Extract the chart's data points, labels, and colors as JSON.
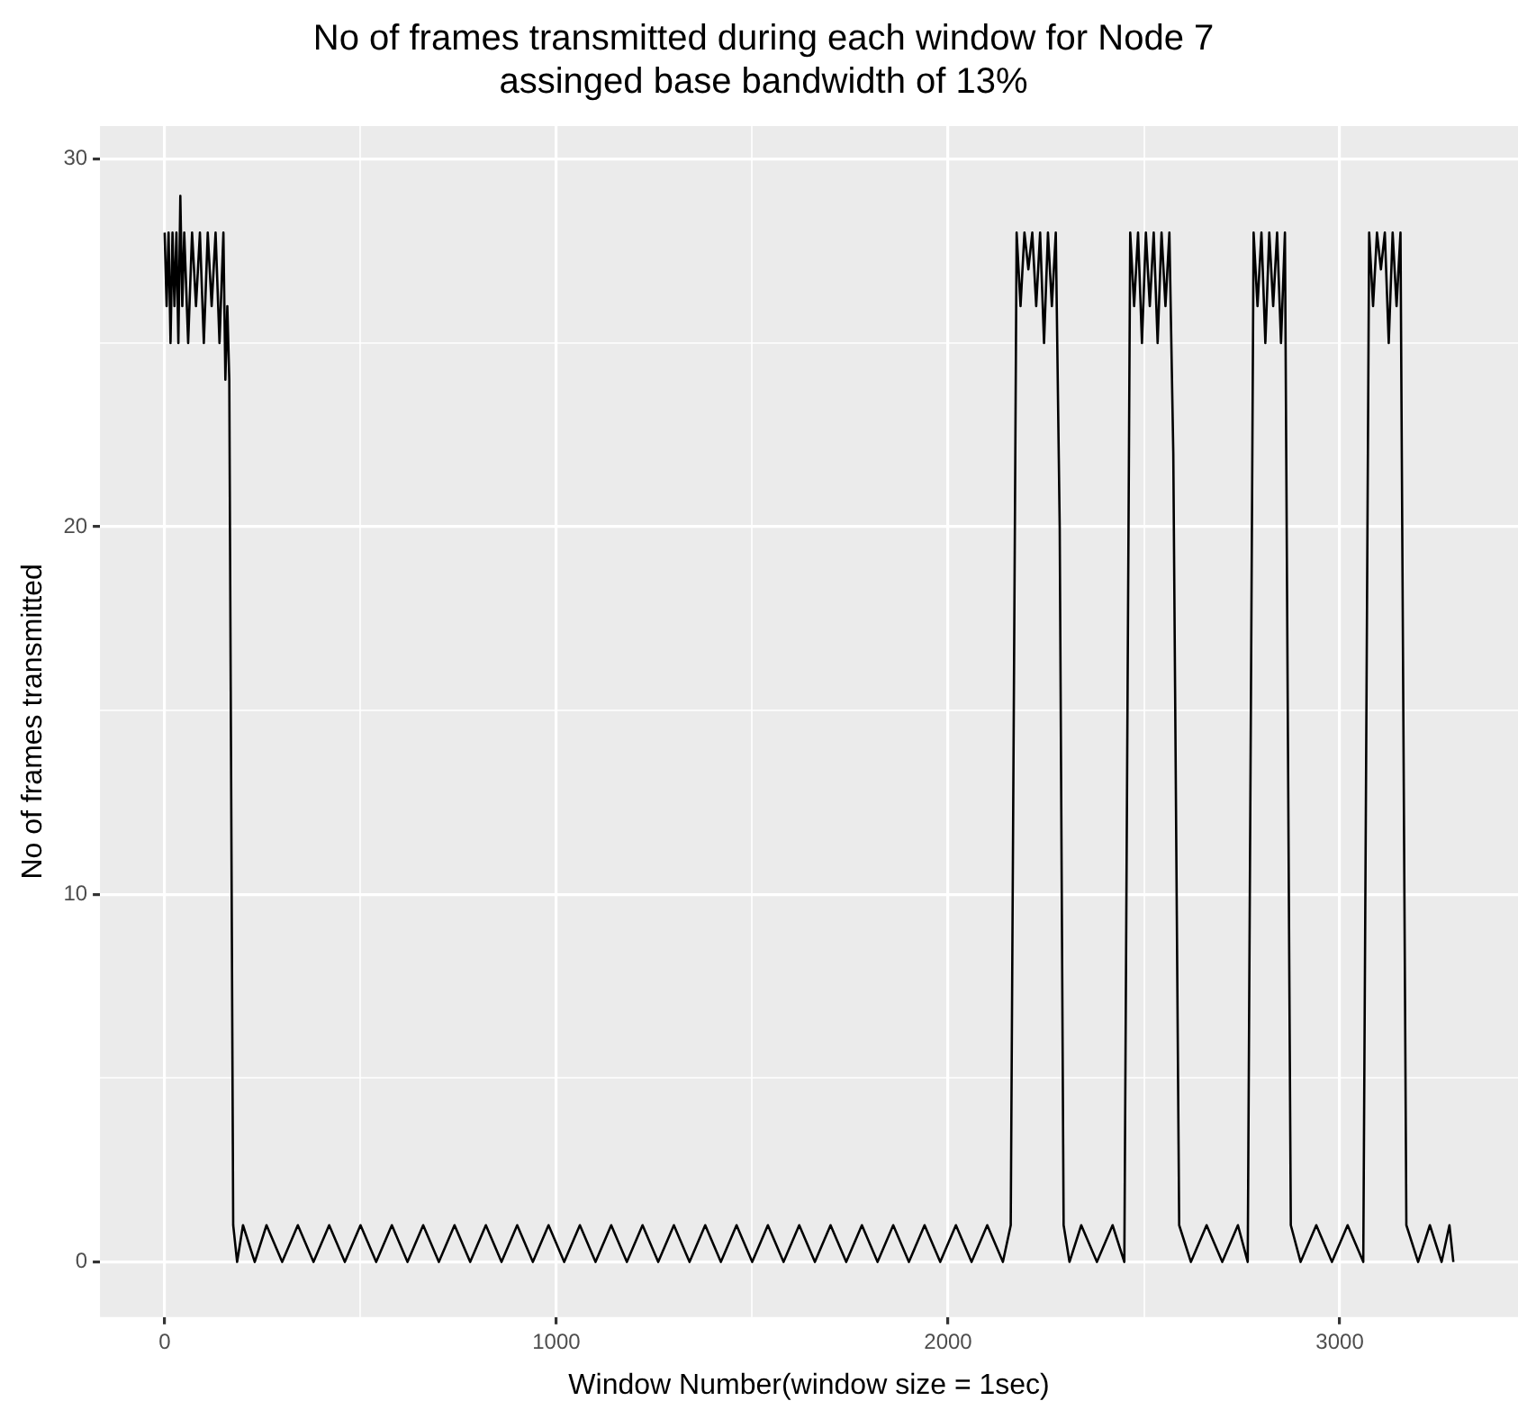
{
  "chart_data": {
    "type": "line",
    "title": "No of frames transmitted during each window for Node 7\nassinged base bandwidth of 13%",
    "xlabel": "Window Number(window size = 1sec)",
    "ylabel": "No of frames transmitted",
    "xlim": [
      -165,
      3455
    ],
    "ylim": [
      -1.5,
      30.9
    ],
    "xticks": [
      0,
      {
        "value": 500,
        "label": null
      },
      1000,
      {
        "value": 1500,
        "label": null
      },
      2000,
      {
        "value": 2500,
        "label": null
      },
      3000
    ],
    "yticks": [
      0,
      {
        "value": 5,
        "label": null
      },
      10,
      {
        "value": 15,
        "label": null
      },
      20,
      {
        "value": 25,
        "label": null
      },
      30
    ],
    "grid": true,
    "legend": false,
    "marker": "none",
    "line_style": "solid",
    "series": [
      {
        "color": "#000000",
        "x": [
          0,
          5,
          10,
          15,
          20,
          25,
          30,
          35,
          40,
          45,
          50,
          60,
          70,
          80,
          90,
          100,
          110,
          120,
          130,
          140,
          150,
          155,
          160,
          165,
          175,
          185,
          200,
          230,
          260,
          300,
          340,
          380,
          420,
          460,
          500,
          540,
          580,
          620,
          660,
          700,
          740,
          780,
          820,
          860,
          900,
          940,
          980,
          1020,
          1060,
          1100,
          1140,
          1180,
          1220,
          1260,
          1300,
          1340,
          1380,
          1420,
          1460,
          1500,
          1540,
          1580,
          1620,
          1660,
          1700,
          1740,
          1780,
          1820,
          1860,
          1900,
          1940,
          1980,
          2020,
          2060,
          2100,
          2140,
          2160,
          2175,
          2185,
          2195,
          2205,
          2215,
          2225,
          2235,
          2245,
          2255,
          2265,
          2275,
          2285,
          2295,
          2310,
          2340,
          2380,
          2420,
          2450,
          2465,
          2475,
          2485,
          2495,
          2505,
          2515,
          2525,
          2535,
          2545,
          2555,
          2565,
          2575,
          2590,
          2620,
          2660,
          2700,
          2740,
          2765,
          2780,
          2790,
          2800,
          2810,
          2820,
          2830,
          2840,
          2850,
          2860,
          2875,
          2900,
          2940,
          2980,
          3020,
          3060,
          3075,
          3085,
          3095,
          3105,
          3115,
          3125,
          3135,
          3145,
          3155,
          3170,
          3200,
          3230,
          3260,
          3280,
          3290
        ],
        "values": [
          28,
          26,
          28,
          25,
          28,
          26,
          28,
          25,
          29,
          26,
          28,
          25,
          28,
          26,
          28,
          25,
          28,
          26,
          28,
          25,
          28,
          24,
          26,
          24,
          1,
          0,
          1,
          0,
          1,
          0,
          1,
          0,
          1,
          0,
          1,
          0,
          1,
          0,
          1,
          0,
          1,
          0,
          1,
          0,
          1,
          0,
          1,
          0,
          1,
          0,
          1,
          0,
          1,
          0,
          1,
          0,
          1,
          0,
          1,
          0,
          1,
          0,
          1,
          0,
          1,
          0,
          1,
          0,
          1,
          0,
          1,
          0,
          1,
          0,
          1,
          0,
          1,
          28,
          26,
          28,
          27,
          28,
          26,
          28,
          25,
          28,
          26,
          28,
          20,
          1,
          0,
          1,
          0,
          1,
          0,
          28,
          26,
          28,
          25,
          28,
          26,
          28,
          25,
          28,
          26,
          28,
          22,
          1,
          0,
          1,
          0,
          1,
          0,
          28,
          26,
          28,
          25,
          28,
          26,
          28,
          25,
          28,
          1,
          0,
          1,
          0,
          1,
          0,
          28,
          26,
          28,
          27,
          28,
          25,
          28,
          26,
          28,
          1,
          0,
          1,
          0,
          1,
          0
        ]
      }
    ]
  }
}
